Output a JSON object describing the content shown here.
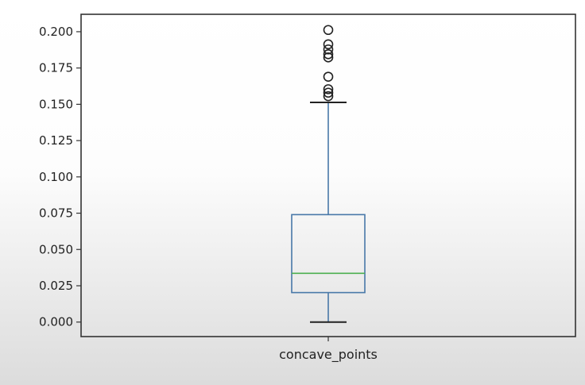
{
  "chart_data": {
    "type": "boxplot",
    "title": "",
    "xlabel": "",
    "ylabel": "",
    "categories": [
      "concave_points"
    ],
    "ylim": [
      -0.01,
      0.212
    ],
    "yticks": [
      0.0,
      0.025,
      0.05,
      0.075,
      0.1,
      0.125,
      0.15,
      0.175,
      0.2
    ],
    "ytick_labels": [
      "0.000",
      "0.025",
      "0.050",
      "0.075",
      "0.100",
      "0.125",
      "0.150",
      "0.175",
      "0.200"
    ],
    "grid": false,
    "legend": "none",
    "boxes": [
      {
        "label": "concave_points",
        "whisker_low": 0.0,
        "q1": 0.0203,
        "median": 0.0336,
        "q3": 0.074,
        "whisker_high": 0.1513,
        "outliers": [
          0.1556,
          0.158,
          0.1604,
          0.169,
          0.1823,
          0.1845,
          0.1878,
          0.1913,
          0.2012
        ]
      }
    ],
    "colors": {
      "box": "#4878a8",
      "whisker": "#4878a8",
      "median": "#4caf50",
      "caps": "#222222",
      "outlier_edge": "#222222"
    }
  }
}
